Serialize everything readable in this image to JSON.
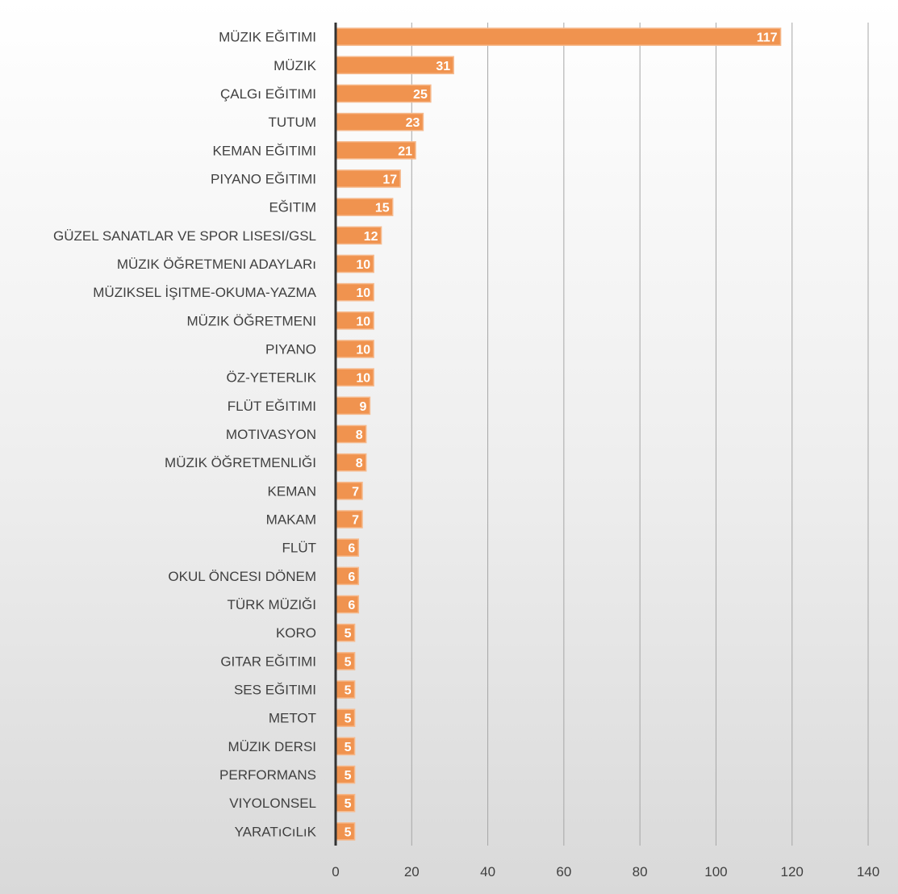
{
  "chart_data": {
    "type": "bar",
    "orientation": "horizontal",
    "categories": [
      "MÜZIK EĞITIMI",
      "MÜZIK",
      "ÇALGı EĞITIMI",
      "TUTUM",
      "KEMAN EĞITIMI",
      "PIYANO EĞITIMI",
      "EĞITIM",
      "GÜZEL SANATLAR VE SPOR LISESI/GSL",
      "MÜZIK ÖĞRETMENI ADAYLARı",
      "MÜZIKSEL İŞITME-OKUMA-YAZMA",
      "MÜZIK ÖĞRETMENI",
      "PIYANO",
      "ÖZ-YETERLIK",
      "FLÜT EĞITIMI",
      "MOTIVASYON",
      "MÜZIK ÖĞRETMENLIĞI",
      "KEMAN",
      "MAKAM",
      "FLÜT",
      "OKUL ÖNCESI DÖNEM",
      "TÜRK MÜZIĞI",
      "KORO",
      "GITAR EĞITIMI",
      "SES EĞITIMI",
      "METOT",
      "MÜZIK DERSI",
      "PERFORMANS",
      "VIYOLONSEL",
      "YARATıCıLıK"
    ],
    "values": [
      117,
      31,
      25,
      23,
      21,
      17,
      15,
      12,
      10,
      10,
      10,
      10,
      10,
      9,
      8,
      8,
      7,
      7,
      6,
      6,
      6,
      5,
      5,
      5,
      5,
      5,
      5,
      5,
      5
    ],
    "x_ticks": [
      0,
      20,
      40,
      60,
      80,
      100,
      120,
      140
    ],
    "xlim": [
      0,
      140
    ],
    "grid": "vertical",
    "data_labels": true,
    "title": "",
    "xlabel": "",
    "ylabel": "",
    "colors": {
      "bar": "#F0934F",
      "bar_edge": "#F6B98C",
      "grid": "#A6A6A6",
      "axis": "#333333",
      "label_text": "#404040",
      "data_label_text": "#FFFFFF"
    }
  }
}
